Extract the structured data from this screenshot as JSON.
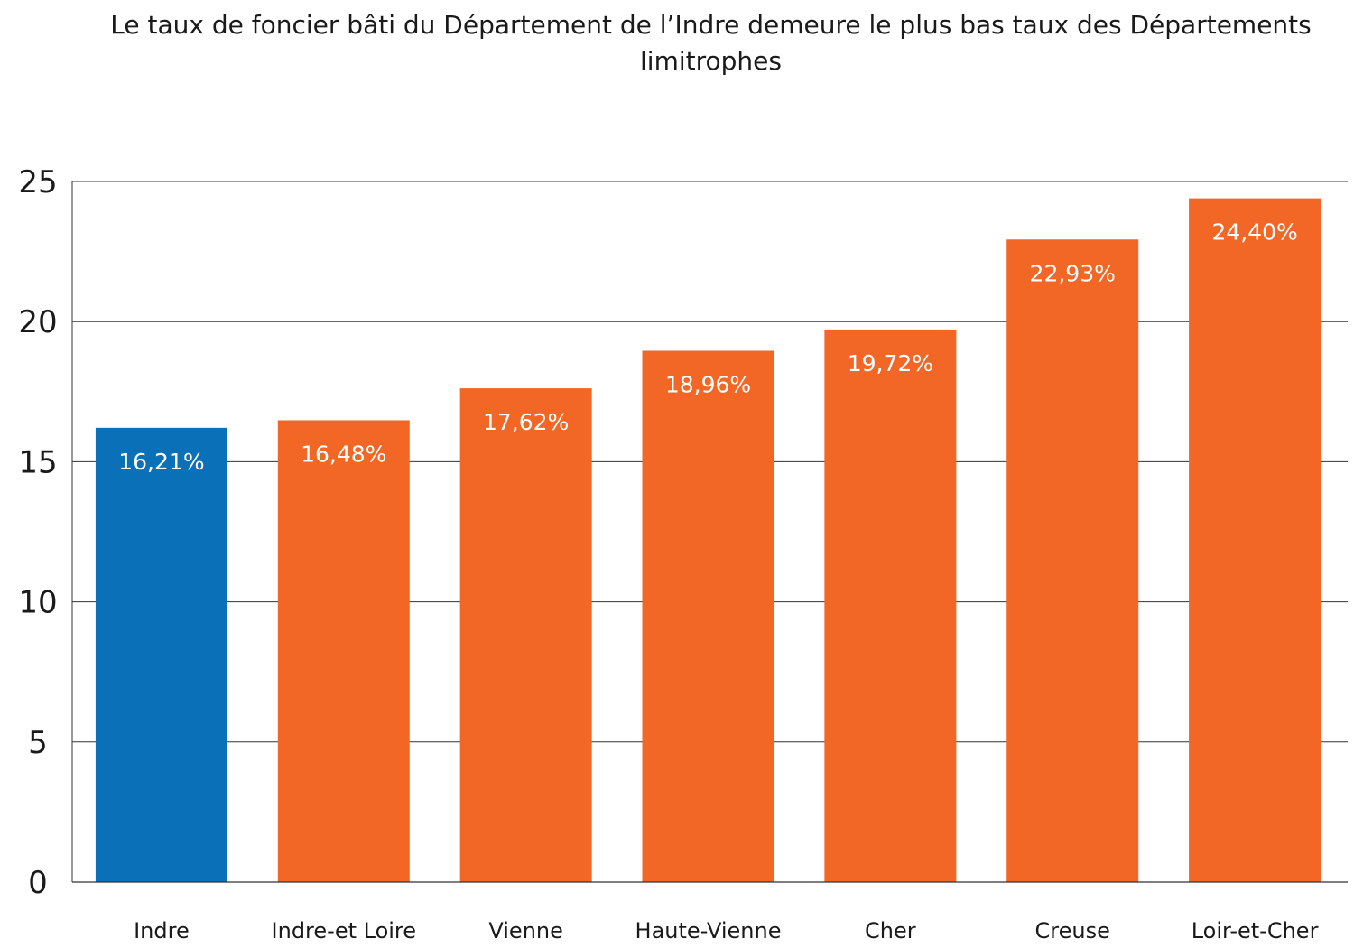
{
  "chart_data": {
    "type": "bar",
    "title": "Le taux de foncier bâti du Département de l’Indre demeure le plus bas taux des Départements limitrophes",
    "xlabel": "",
    "ylabel": "",
    "categories": [
      "Indre",
      "Indre-et Loire",
      "Vienne",
      "Haute-Vienne",
      "Cher",
      "Creuse",
      "Loir-et-Cher"
    ],
    "values": [
      16.21,
      16.48,
      17.62,
      18.96,
      19.72,
      22.93,
      24.4
    ],
    "data_labels": [
      "16,21%",
      "16,48%",
      "17,62%",
      "18,96%",
      "19,72%",
      "22,93%",
      "24,40%"
    ],
    "ylim": [
      0,
      25
    ],
    "yticks": [
      0,
      5,
      10,
      15,
      20,
      25
    ],
    "grid": true,
    "legend": "none",
    "colors": {
      "highlight": "#0a70b8",
      "default": "#f26725",
      "grid": "#333333",
      "label_text": "#ffffff",
      "axis_text": "#1a1a1a"
    },
    "highlight_index": 0
  }
}
